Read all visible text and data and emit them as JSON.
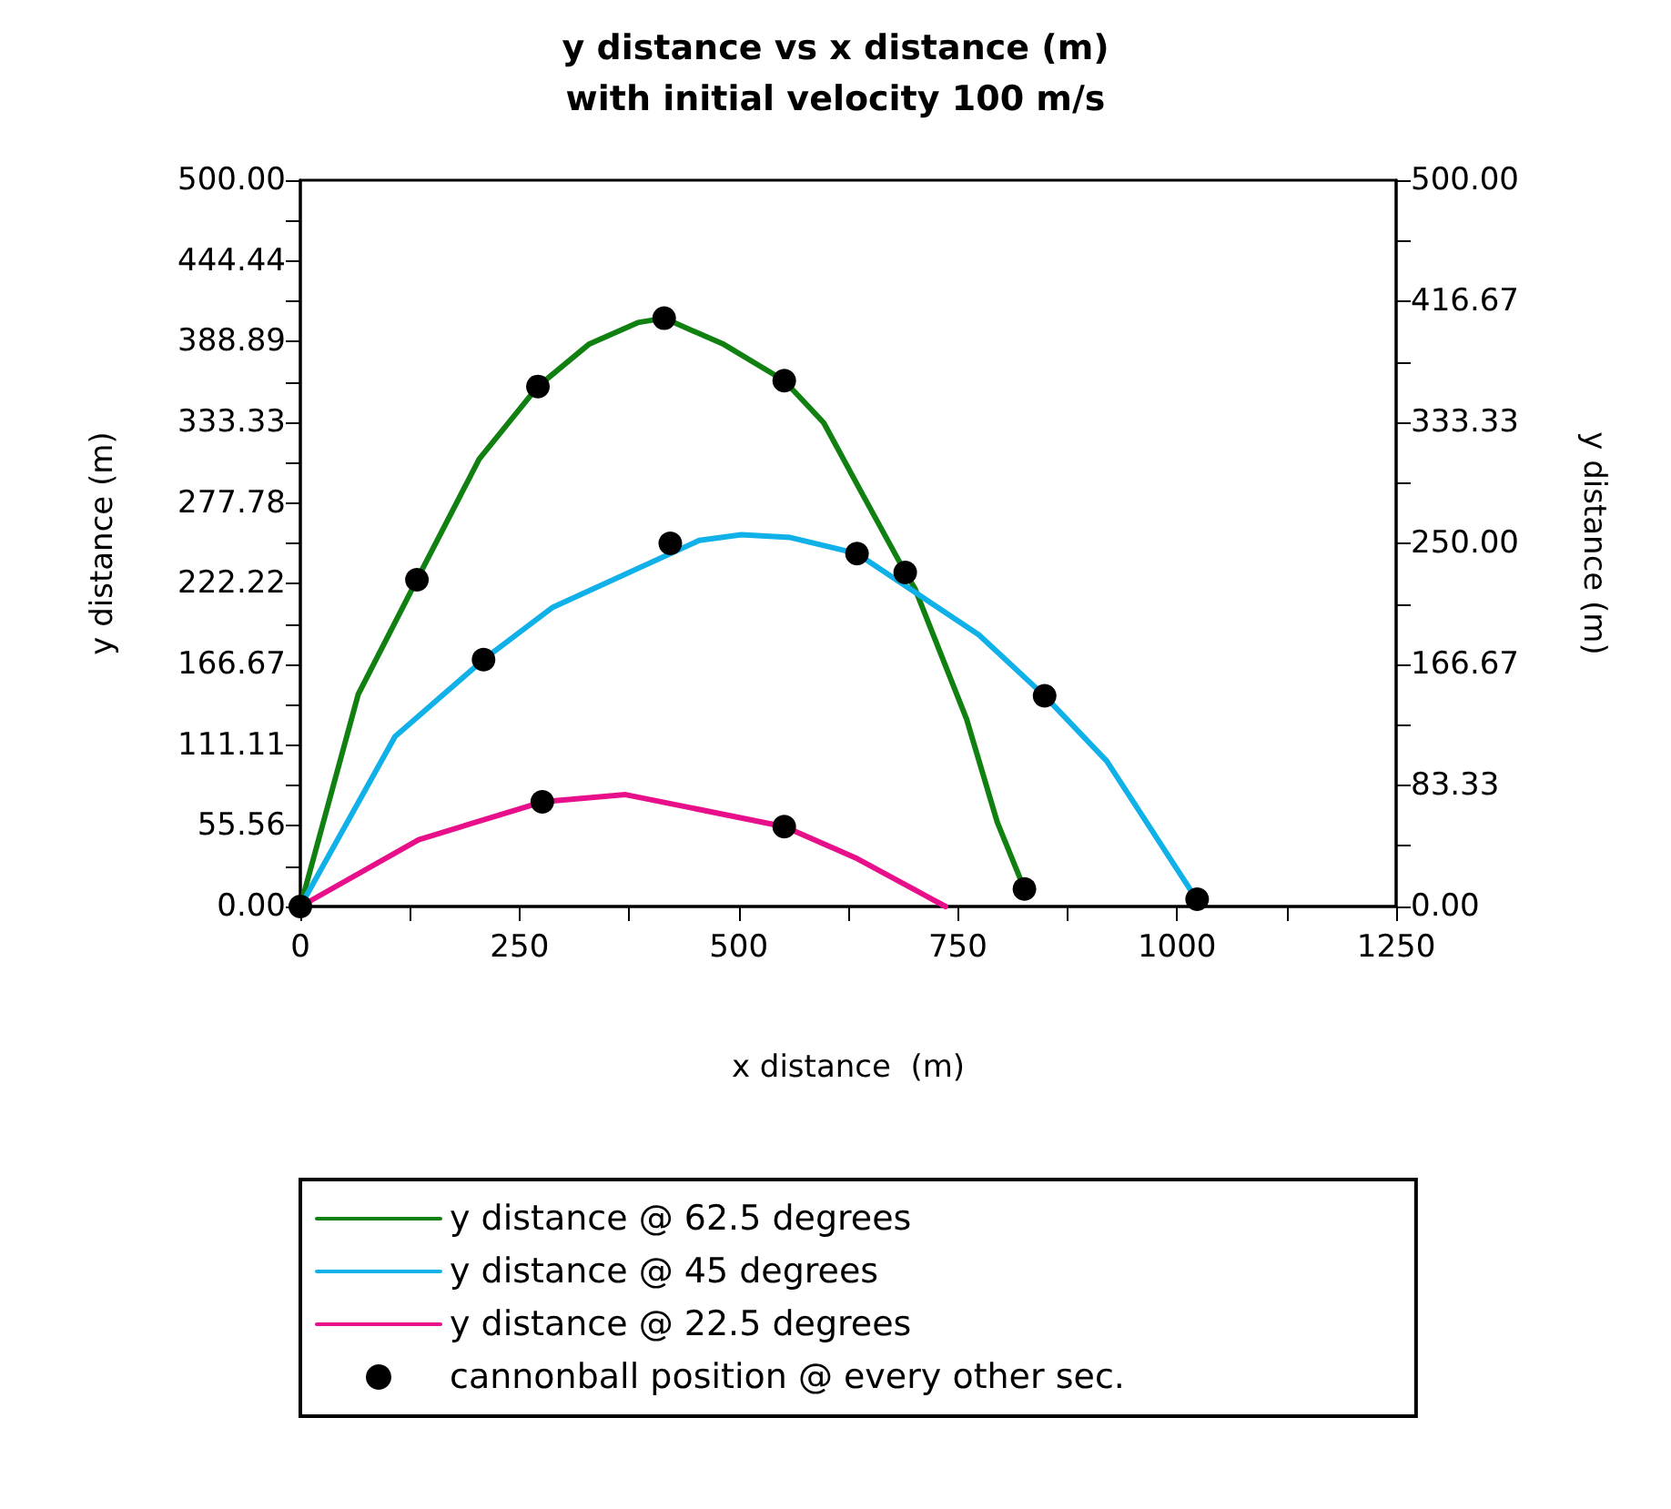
{
  "chart_data": {
    "type": "line",
    "title": "y distance vs x distance (m)",
    "subtitle": "with initial velocity 100 m/s",
    "xlabel": "x distance  (m)",
    "ylabel": "y distance (m)",
    "y2label": "y distance (m)",
    "xlim": [
      0,
      1250
    ],
    "xticks": [
      0,
      {
        "value": 125,
        "label": null
      },
      250,
      {
        "value": 375,
        "label": null
      },
      500,
      {
        "value": 625,
        "label": null
      },
      750,
      {
        "value": 875,
        "label": null
      },
      1000,
      {
        "value": 1125,
        "label": null
      },
      1250
    ],
    "ylim": [
      0,
      500
    ],
    "yticks": [
      {
        "value": 0,
        "label": "0.00"
      },
      {
        "value": 27.78,
        "label": null
      },
      {
        "value": 55.56,
        "label": "55.56"
      },
      {
        "value": 83.33,
        "label": null
      },
      {
        "value": 111.11,
        "label": "111.11"
      },
      {
        "value": 138.89,
        "label": null
      },
      {
        "value": 166.67,
        "label": "166.67"
      },
      {
        "value": 194.44,
        "label": null
      },
      {
        "value": 222.22,
        "label": "222.22"
      },
      {
        "value": 250,
        "label": null
      },
      {
        "value": 277.78,
        "label": "277.78"
      },
      {
        "value": 305.56,
        "label": null
      },
      {
        "value": 333.33,
        "label": "333.33"
      },
      {
        "value": 361.11,
        "label": null
      },
      {
        "value": 388.89,
        "label": "388.89"
      },
      {
        "value": 416.67,
        "label": null
      },
      {
        "value": 444.44,
        "label": "444.44"
      },
      {
        "value": 472.22,
        "label": null
      },
      {
        "value": 500,
        "label": "500.00"
      }
    ],
    "y2lim": [
      0,
      500
    ],
    "y2ticks": [
      {
        "value": 0,
        "label": "0.00"
      },
      {
        "value": 41.67,
        "label": null
      },
      {
        "value": 83.33,
        "label": "83.33"
      },
      {
        "value": 125,
        "label": null
      },
      {
        "value": 166.67,
        "label": "166.67"
      },
      {
        "value": 208.33,
        "label": null
      },
      {
        "value": 250,
        "label": "250.00"
      },
      {
        "value": 291.67,
        "label": null
      },
      {
        "value": 333.33,
        "label": "333.33"
      },
      {
        "value": 375,
        "label": null
      },
      {
        "value": 416.67,
        "label": "416.67"
      },
      {
        "value": 458.33,
        "label": null
      },
      {
        "value": 500,
        "label": "500.00"
      }
    ],
    "grid": false,
    "legend": "bottom",
    "marker": "none",
    "line_style": "solid",
    "series": [
      {
        "name": "y distance @ 62.5 degrees",
        "color": "#108010",
        "x": [
          0,
          66,
          133,
          204,
          271,
          329,
          385,
          415,
          483,
          552,
          597,
          642,
          690,
          701,
          760,
          795,
          826
        ],
        "values": [
          0,
          146,
          225,
          308,
          358,
          387,
          402,
          405,
          387,
          362,
          333,
          283,
          230,
          219,
          129,
          58,
          12
        ]
      },
      {
        "name": "y distance @ 45 degrees",
        "color": "#10b0e8",
        "x": [
          0,
          108,
          209,
          288,
          455,
          503,
          559,
          635,
          774,
          849,
          920,
          1017
        ],
        "values": [
          0,
          117,
          170,
          206,
          252,
          256,
          254,
          243,
          187,
          145,
          100,
          10
        ]
      },
      {
        "name": "y distance @ 22.5 degrees",
        "color": "#e8108a",
        "x": [
          0,
          135,
          276,
          371,
          552,
          635,
          736
        ],
        "values": [
          0,
          46,
          72,
          77,
          55,
          33,
          0
        ]
      },
      {
        "name": "cannonball position @ every other sec.",
        "type": "scatter",
        "marker": "circle",
        "color": "#000000",
        "x": [
          0,
          133,
          271,
          415,
          552,
          690,
          826,
          209,
          422,
          635,
          849,
          1023,
          276,
          552
        ],
        "values": [
          0,
          225,
          358,
          405,
          362,
          230,
          12,
          170,
          250,
          243,
          145,
          5,
          72,
          55
        ]
      }
    ]
  }
}
